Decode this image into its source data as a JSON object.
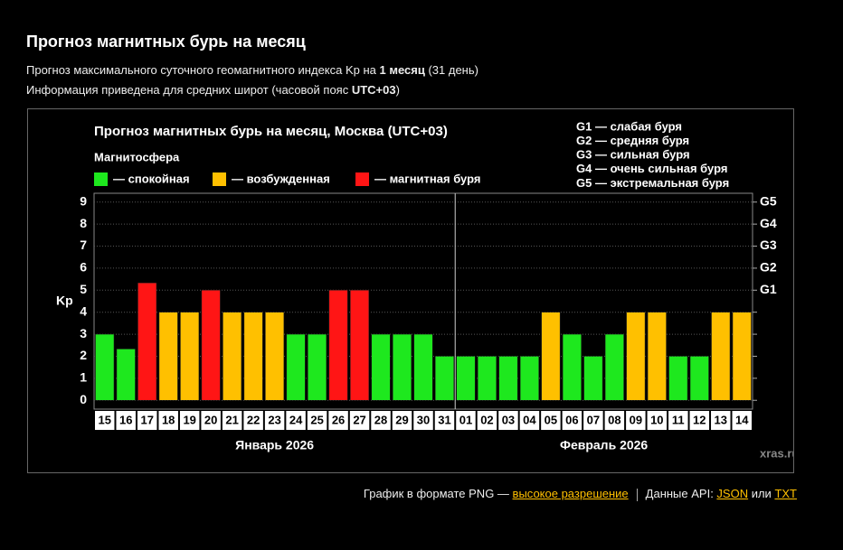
{
  "header": {
    "title": "Прогноз магнитных бурь на месяц",
    "line1": [
      "Прогноз максимального суточного геомагнитного индекса Kp на ",
      "1 месяц",
      " (31 день)"
    ],
    "line2": [
      "Информация приведена для средних широт (часовой пояс ",
      "UTC+03",
      ")"
    ]
  },
  "chart_data": {
    "type": "bar",
    "title": "Прогноз магнитных бурь на месяц, Москва (UTC+03)",
    "legend_title": "Магнитосфера",
    "legend": [
      {
        "label": "— спокойная",
        "color": "#1ee81e"
      },
      {
        "label": "— возбужденная",
        "color": "#ffc000"
      },
      {
        "label": "— магнитная буря",
        "color": "#ff1515"
      }
    ],
    "g_legend": [
      "G1 — слабая буря",
      "G2 — средняя буря",
      "G3 — сильная буря",
      "G4 — очень сильная буря",
      "G5 — экстремальная буря"
    ],
    "y_label": "Kp",
    "categories": [
      "15",
      "16",
      "17",
      "18",
      "19",
      "20",
      "21",
      "22",
      "23",
      "24",
      "25",
      "26",
      "27",
      "28",
      "29",
      "30",
      "31",
      "01",
      "02",
      "03",
      "04",
      "05",
      "06",
      "07",
      "08",
      "09",
      "10",
      "11",
      "12",
      "13",
      "14"
    ],
    "months": [
      "Январь 2026",
      "Февраль 2026"
    ],
    "values": [
      3,
      2.33,
      5.33,
      4,
      4,
      5,
      4,
      4,
      4,
      3,
      3,
      5,
      5,
      3,
      3,
      3,
      2,
      2,
      2,
      2,
      2,
      4,
      3,
      2,
      3,
      4,
      4,
      2,
      2,
      4,
      4
    ],
    "colors": [
      "#1ee81e",
      "#1ee81e",
      "#ff1515",
      "#ffc000",
      "#ffc000",
      "#ff1515",
      "#ffc000",
      "#ffc000",
      "#ffc000",
      "#1ee81e",
      "#1ee81e",
      "#ff1515",
      "#ff1515",
      "#1ee81e",
      "#1ee81e",
      "#1ee81e",
      "#1ee81e",
      "#1ee81e",
      "#1ee81e",
      "#1ee81e",
      "#1ee81e",
      "#ffc000",
      "#1ee81e",
      "#1ee81e",
      "#1ee81e",
      "#ffc000",
      "#ffc000",
      "#1ee81e",
      "#1ee81e",
      "#ffc000",
      "#ffc000"
    ],
    "ylim": [
      -0.4,
      9.4
    ],
    "yticks": [
      0,
      1,
      2,
      3,
      4,
      5,
      6,
      7,
      8,
      9
    ],
    "y2ticks": [
      {
        "value": 5,
        "label": "G1"
      },
      {
        "value": 6,
        "label": "G2"
      },
      {
        "value": 7,
        "label": "G3"
      },
      {
        "value": 8,
        "label": "G4"
      },
      {
        "value": 9,
        "label": "G5"
      }
    ],
    "grid": true,
    "watermark": "xras.ru"
  },
  "footer": {
    "png_text": "График в формате PNG — ",
    "png_link": "высокое разрешение",
    "api_text": "Данные API: ",
    "json_link": "JSON",
    "or_text": " или ",
    "txt_link": "TXT"
  }
}
